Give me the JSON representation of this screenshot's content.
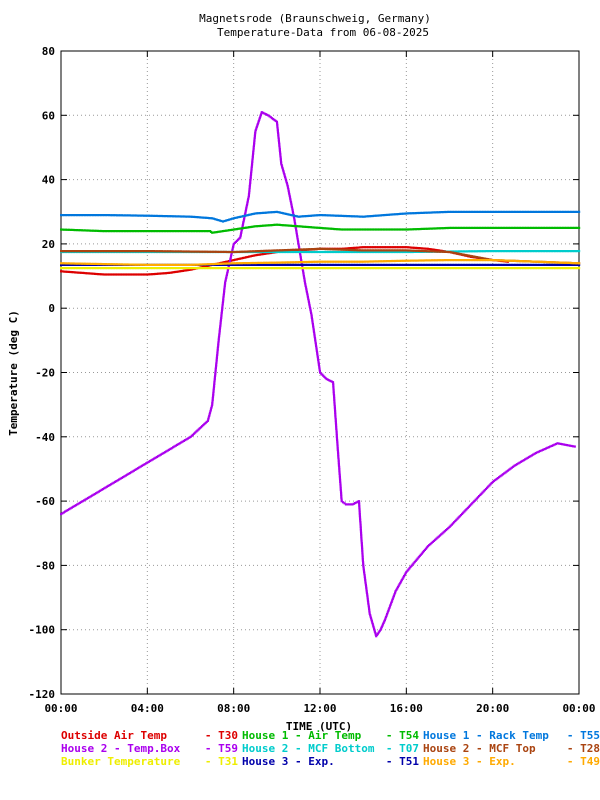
{
  "chart_data": {
    "type": "scatter",
    "title": "Magnetsrode (Braunschweig, Germany)",
    "subtitle": "Temperature-Data from 06-08-2025",
    "xlabel": "TIME (UTC)",
    "ylabel": "Temperature (deg C)",
    "xlim": [
      0,
      24
    ],
    "ylim": [
      -120,
      80
    ],
    "x_ticks": [
      0,
      4,
      8,
      12,
      16,
      20,
      24
    ],
    "x_tick_labels": [
      "00:00",
      "04:00",
      "08:00",
      "12:00",
      "16:00",
      "20:00",
      "00:00"
    ],
    "y_ticks": [
      -120,
      -100,
      -80,
      -60,
      -40,
      -20,
      0,
      20,
      40,
      60,
      80
    ],
    "y_tick_labels": [
      "-120",
      "-100",
      "-80",
      "-60",
      "-40",
      "-20",
      "0",
      "20",
      "40",
      "60",
      "80"
    ],
    "grid": true,
    "legend_position": "bottom",
    "series": [
      {
        "name": "Outside Air Temp",
        "code": "T30",
        "color": "#dd0000",
        "x": [
          0,
          1,
          2,
          3,
          4,
          5,
          6,
          7,
          8,
          9,
          10,
          11,
          12,
          13,
          14,
          15,
          16,
          17,
          18,
          19,
          20,
          20.7
        ],
        "y": [
          11.5,
          11,
          10.5,
          10.5,
          10.5,
          11,
          12,
          13.5,
          15,
          16.5,
          17.5,
          18,
          18.5,
          18.5,
          19,
          19,
          19,
          18.5,
          17.5,
          16,
          15,
          14.5
        ]
      },
      {
        "name": "House 2 - Temp.Box",
        "code": "T59",
        "color": "#aa00ee",
        "x": [
          0,
          1,
          2,
          3,
          4,
          5,
          6,
          6.8,
          7,
          7.3,
          7.6,
          8,
          8.3,
          8.7,
          9,
          9.3,
          9.6,
          10,
          10.2,
          10.5,
          10.8,
          11,
          11.3,
          11.6,
          12,
          12.3,
          12.6,
          12.8,
          13,
          13.2,
          13.5,
          13.8,
          14,
          14.3,
          14.6,
          14.8,
          15,
          15.5,
          16,
          17,
          18,
          19,
          20,
          21,
          22,
          23,
          23.8
        ],
        "y": [
          -64,
          -60,
          -56,
          -52,
          -48,
          -44,
          -40,
          -35,
          -30,
          -10,
          8,
          20,
          22,
          35,
          55,
          61,
          60,
          58,
          45,
          38,
          28,
          20,
          8,
          -2,
          -20,
          -22,
          -23,
          -42,
          -60,
          -61,
          -61,
          -60,
          -80,
          -95,
          -102,
          -100,
          -97,
          -88,
          -82,
          -74,
          -68,
          -61,
          -54,
          -49,
          -45,
          -42,
          -43
        ]
      },
      {
        "name": "Bunker Temperature",
        "code": "T31",
        "color": "#eeee00",
        "x": [
          0,
          2,
          4,
          6,
          8,
          10,
          12,
          14,
          16,
          18,
          20,
          22,
          24
        ],
        "y": [
          12.5,
          12.5,
          12.5,
          12.5,
          12.5,
          12.5,
          12.5,
          12.5,
          12.5,
          12.5,
          12.5,
          12.5,
          12.5
        ]
      },
      {
        "name": "House 1 - Air  Temp",
        "code": "T54",
        "color": "#00bb00",
        "x": [
          0,
          2,
          4,
          6,
          6.9,
          7,
          8,
          9,
          10,
          11,
          12,
          13,
          14,
          16,
          18,
          20,
          22,
          24
        ],
        "y": [
          24.5,
          24,
          24,
          24,
          24,
          23.5,
          24.5,
          25.5,
          26,
          25.5,
          25,
          24.5,
          24.5,
          24.5,
          25,
          25,
          25,
          25
        ]
      },
      {
        "name": "House 2 - MCF Bottom",
        "code": "T07",
        "color": "#00cccc",
        "x": [
          0,
          4,
          8,
          12,
          16,
          20,
          24
        ],
        "y": [
          17.5,
          17.5,
          17.5,
          17.5,
          17.5,
          17.8,
          17.8
        ]
      },
      {
        "name": "House 3 - Exp.",
        "code": "T51",
        "color": "#0000aa",
        "x": [
          0,
          4,
          8,
          12,
          16,
          20,
          24
        ],
        "y": [
          13.5,
          13.5,
          13.5,
          13.5,
          13.5,
          13.5,
          13.5
        ]
      },
      {
        "name": "House 1 - Rack Temp",
        "code": "T55",
        "color": "#0077dd",
        "x": [
          0,
          2,
          4,
          6,
          7,
          7.5,
          8,
          9,
          10,
          11,
          12,
          14,
          16,
          18,
          20,
          22,
          24
        ],
        "y": [
          29,
          29,
          28.8,
          28.5,
          28,
          27,
          28,
          29.5,
          30,
          28.5,
          29,
          28.5,
          29.5,
          30,
          30,
          30,
          30
        ]
      },
      {
        "name": "House 2 - MCF Top",
        "code": "T28",
        "color": "#aa4411",
        "x": [
          0,
          4,
          8,
          10,
          12,
          14,
          16,
          18,
          20,
          22,
          24
        ],
        "y": [
          17.8,
          17.8,
          17.5,
          18,
          18.5,
          18,
          18,
          17.5,
          15,
          14.5,
          14
        ]
      },
      {
        "name": "House 3 - Exp.",
        "code": "T49",
        "color": "#ffaa00",
        "x": [
          0,
          4,
          6,
          8,
          10,
          12,
          14,
          16,
          18,
          20,
          22,
          24
        ],
        "y": [
          14,
          13.5,
          13.5,
          14,
          14.2,
          14.5,
          14.5,
          14.8,
          15,
          15,
          14.5,
          14
        ]
      }
    ]
  }
}
